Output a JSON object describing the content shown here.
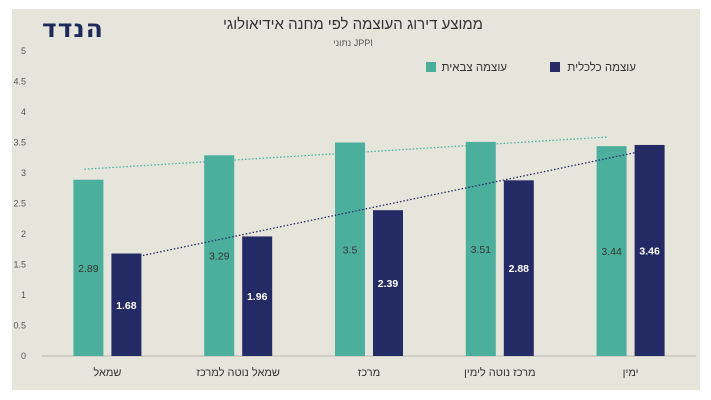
{
  "logo": {
    "text": "הנדד"
  },
  "chart_data": {
    "type": "bar",
    "title": "ממוצע דירוג העוצמה לפי מחנה אידיאולוגי",
    "subtitle": "נתוני JPPI",
    "categories": [
      "שמאל",
      "שמאל נוטה למרכז",
      "מרכז",
      "מרכז נוטה לימין",
      "ימין"
    ],
    "series": [
      {
        "name": "עוצמה צבאית",
        "color": "#4caf9e",
        "values": [
          2.89,
          3.29,
          3.5,
          3.51,
          3.44
        ],
        "label_color": "#333333"
      },
      {
        "name": "עוצמה כלכלית",
        "color": "#242a64",
        "values": [
          1.68,
          1.96,
          2.39,
          2.88,
          3.46
        ],
        "label_color": "#ffffff"
      }
    ],
    "trendlines": [
      {
        "series": "עוצמה צבאית",
        "color": "#4caf9e"
      },
      {
        "series": "עוצמה כלכלית",
        "color": "#242a64"
      }
    ],
    "ylim": [
      0,
      5
    ],
    "yticks": [
      "0",
      "0.5",
      "1",
      "1.5",
      "2",
      "2.5",
      "3",
      "3.5",
      "4",
      "4.5",
      "5"
    ],
    "legend": "top-right",
    "grid": false
  }
}
